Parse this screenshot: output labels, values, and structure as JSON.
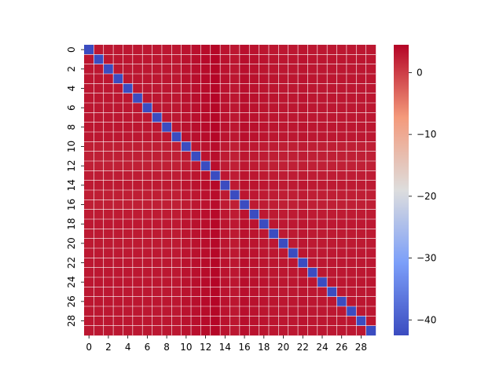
{
  "chart_data": {
    "type": "heatmap",
    "title": "",
    "xlabel": "",
    "ylabel": "",
    "rows": 30,
    "cols": 30,
    "diagonal_value": -42.5,
    "off_diagonal_value_range": [
      2.0,
      4.5
    ],
    "x_tick_labels": [
      "0",
      "2",
      "4",
      "6",
      "8",
      "10",
      "12",
      "14",
      "16",
      "18",
      "20",
      "22",
      "24",
      "26",
      "28"
    ],
    "y_tick_labels": [
      "0",
      "2",
      "4",
      "6",
      "8",
      "10",
      "12",
      "14",
      "16",
      "18",
      "20",
      "22",
      "24",
      "26",
      "28"
    ],
    "colorbar": {
      "colormap": "coolwarm",
      "vmin": -42.5,
      "vmax": 4.5,
      "ticks": [
        {
          "value": 0,
          "label": "0"
        },
        {
          "value": -10,
          "label": "−10"
        },
        {
          "value": -20,
          "label": "−20"
        },
        {
          "value": -30,
          "label": "−30"
        },
        {
          "value": -40,
          "label": "−40"
        }
      ]
    },
    "grid_lines": true,
    "row_base_values": [
      3.0,
      3.1,
      3.0,
      3.1,
      3.0,
      3.1,
      3.0,
      3.0,
      3.1,
      3.0,
      2.5,
      2.4,
      2.3,
      2.6,
      2.8,
      2.5,
      2.4,
      2.7,
      2.9,
      2.8,
      2.8,
      2.9,
      3.0,
      3.0,
      3.1,
      3.0,
      3.1,
      3.0,
      3.1,
      3.0
    ],
    "col_offsets": [
      0,
      0,
      0,
      0,
      0,
      0,
      0,
      0,
      0,
      0,
      0.4,
      0.6,
      0.9,
      1.3,
      0.3,
      0,
      0.6,
      0.4,
      0.2,
      0.1,
      0,
      0,
      0.2,
      0,
      0,
      0,
      0,
      0,
      0,
      0
    ]
  }
}
